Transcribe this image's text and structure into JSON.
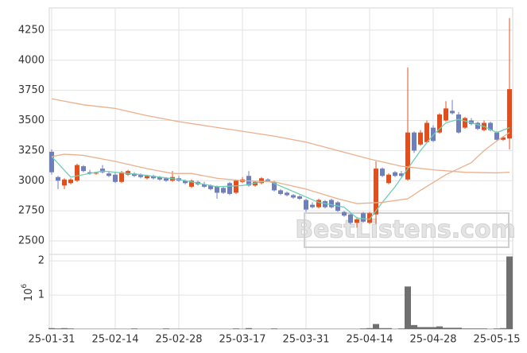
{
  "chart_data": [
    {
      "type": "candlestick",
      "categories": [
        "25-01-31",
        null,
        null,
        null,
        null,
        null,
        null,
        null,
        null,
        null,
        "25-02-14",
        null,
        null,
        null,
        null,
        null,
        null,
        null,
        null,
        null,
        "25-02-28",
        null,
        null,
        null,
        null,
        null,
        null,
        null,
        null,
        null,
        "25-03-17",
        null,
        null,
        null,
        null,
        null,
        null,
        null,
        null,
        null,
        "25-03-31",
        null,
        null,
        null,
        null,
        null,
        null,
        null,
        null,
        null,
        "25-04-14",
        null,
        null,
        null,
        null,
        null,
        null,
        null,
        null,
        null,
        "25-04-28",
        null,
        null,
        null,
        null,
        null,
        null,
        null,
        null,
        null,
        "25-05-15",
        null,
        null
      ],
      "open": [
        3240,
        3030,
        2960,
        2980,
        3000,
        3120,
        3070,
        3060,
        3100,
        3060,
        3050,
        2990,
        3050,
        3060,
        3050,
        3020,
        3040,
        3030,
        3020,
        3000,
        3020,
        3000,
        2950,
        2990,
        2970,
        2960,
        2950,
        2940,
        2980,
        2900,
        2990,
        3040,
        2960,
        2980,
        3010,
        2990,
        2920,
        2900,
        2880,
        2870,
        2840,
        2800,
        2780,
        2830,
        2840,
        2820,
        2740,
        2720,
        2650,
        2730,
        2650,
        2720,
        3100,
        2980,
        3070,
        3060,
        3010,
        3400,
        3300,
        3320,
        3440,
        3400,
        3500,
        3580,
        3550,
        3440,
        3500,
        3480,
        3420,
        3480,
        3400,
        3340,
        3350
      ],
      "high": [
        3260,
        3040,
        3020,
        3020,
        3140,
        3130,
        3090,
        3070,
        3130,
        3080,
        3070,
        3080,
        3090,
        3070,
        3060,
        3050,
        3050,
        3040,
        3030,
        3080,
        3040,
        3010,
        3010,
        3000,
        2990,
        2970,
        2960,
        2950,
        2990,
        3010,
        3030,
        3080,
        3000,
        3030,
        3020,
        3000,
        2930,
        2910,
        2890,
        2880,
        2850,
        2820,
        2850,
        2840,
        2850,
        2830,
        2750,
        2730,
        2700,
        2740,
        2740,
        3160,
        3110,
        3060,
        3080,
        3080,
        3940,
        3410,
        3420,
        3500,
        3460,
        3560,
        3660,
        3670,
        3570,
        3530,
        3520,
        3490,
        3500,
        3490,
        3410,
        3370,
        4350
      ],
      "low": [
        3050,
        2930,
        2930,
        2970,
        2990,
        3070,
        3050,
        3050,
        3060,
        3030,
        2980,
        2980,
        3040,
        3030,
        3020,
        3010,
        3010,
        3000,
        2990,
        2990,
        2990,
        2970,
        2940,
        2960,
        2940,
        2920,
        2850,
        2890,
        2880,
        2890,
        2980,
        2950,
        2950,
        2970,
        2990,
        2910,
        2880,
        2870,
        2850,
        2840,
        2740,
        2770,
        2770,
        2770,
        2770,
        2740,
        2700,
        2640,
        2610,
        2650,
        2640,
        2640,
        3030,
        2970,
        3030,
        3030,
        3000,
        3230,
        3290,
        3310,
        3320,
        3390,
        3490,
        3550,
        3390,
        3430,
        3460,
        3420,
        3410,
        3410,
        3330,
        3330,
        3260
      ],
      "close": [
        3070,
        3000,
        3010,
        3010,
        3130,
        3080,
        3060,
        3065,
        3070,
        3040,
        2990,
        3070,
        3080,
        3040,
        3030,
        3040,
        3020,
        3010,
        3000,
        3030,
        3000,
        2980,
        3000,
        2970,
        2950,
        2930,
        2900,
        2900,
        2890,
        3000,
        3010,
        2960,
        2990,
        3020,
        3000,
        2920,
        2890,
        2880,
        2860,
        2850,
        2760,
        2780,
        2840,
        2780,
        2780,
        2750,
        2710,
        2650,
        2680,
        2660,
        2730,
        3100,
        3040,
        3050,
        3040,
        3040,
        3400,
        3250,
        3400,
        3480,
        3330,
        3550,
        3600,
        3560,
        3400,
        3520,
        3470,
        3430,
        3480,
        3420,
        3340,
        3360,
        3760
      ],
      "up_color": "#e0501e",
      "down_color": "#6f7fba",
      "series": [
        {
          "color": "#6fcfb2",
          "x": [
            0,
            3,
            8,
            14,
            20,
            26,
            30,
            34,
            38,
            42,
            46,
            48,
            50,
            52,
            54,
            56,
            58,
            60,
            62,
            64,
            66,
            68,
            70,
            72
          ],
          "values": [
            3200,
            3030,
            3080,
            3050,
            3010,
            2950,
            2960,
            3000,
            2910,
            2820,
            2780,
            2690,
            2680,
            2820,
            2950,
            3100,
            3250,
            3380,
            3480,
            3510,
            3480,
            3450,
            3400,
            3440
          ]
        },
        {
          "color": "#eab08c",
          "x": [
            0,
            2,
            5,
            10,
            15,
            19,
            22,
            26,
            30,
            35,
            40,
            45,
            48,
            52,
            56,
            58,
            62,
            66,
            68,
            70,
            72
          ],
          "values": [
            3200,
            3220,
            3210,
            3160,
            3100,
            3060,
            3060,
            3020,
            3000,
            2990,
            2930,
            2850,
            2810,
            2820,
            2850,
            2920,
            3050,
            3150,
            3250,
            3330,
            3400
          ]
        },
        {
          "color": "#eab08c",
          "x": [
            0,
            5,
            10,
            15,
            20,
            25,
            30,
            35,
            40,
            45,
            50,
            55,
            60,
            65,
            70,
            72
          ],
          "values": [
            3680,
            3630,
            3600,
            3540,
            3490,
            3450,
            3410,
            3370,
            3320,
            3250,
            3180,
            3120,
            3090,
            3070,
            3065,
            3070
          ]
        }
      ],
      "ylim": [
        2388,
        4434
      ],
      "yticks": [
        2500,
        2750,
        3000,
        3250,
        3500,
        3750,
        4000,
        4250
      ],
      "grid": true,
      "watermark": "BestListens.com"
    },
    {
      "type": "bar",
      "color": "#707070",
      "categories": [
        "25-01-31",
        null,
        null,
        null,
        null,
        null,
        null,
        null,
        null,
        null,
        "25-02-14",
        null,
        null,
        null,
        null,
        null,
        null,
        null,
        null,
        null,
        "25-02-28",
        null,
        null,
        null,
        null,
        null,
        null,
        null,
        null,
        null,
        "25-03-17",
        null,
        null,
        null,
        null,
        null,
        null,
        null,
        null,
        null,
        "25-03-31",
        null,
        null,
        null,
        null,
        null,
        null,
        null,
        null,
        null,
        "25-04-14",
        null,
        null,
        null,
        null,
        null,
        null,
        null,
        null,
        null,
        "25-04-28",
        null,
        null,
        null,
        null,
        null,
        null,
        null,
        null,
        null,
        "25-05-15",
        null,
        null
      ],
      "values": [
        0.03,
        0.02,
        0.03,
        0.02,
        0.01,
        0.01,
        0.01,
        0.01,
        0.01,
        0.01,
        0.01,
        0.01,
        0.01,
        0.02,
        0.01,
        0.01,
        0.01,
        0.01,
        0.02,
        0.01,
        0.01,
        0.01,
        0.01,
        0.01,
        0.01,
        0.01,
        0.01,
        0.01,
        0.01,
        0.02,
        0.01,
        0.03,
        0.01,
        0.01,
        0.01,
        0.02,
        0.01,
        0.01,
        0.01,
        0.01,
        0.01,
        0.01,
        0.01,
        0.01,
        0.01,
        0.01,
        0.01,
        0.01,
        0.01,
        0.02,
        0.03,
        0.15,
        0.03,
        0.03,
        0.01,
        0.02,
        1.25,
        0.12,
        0.06,
        0.06,
        0.06,
        0.08,
        0.04,
        0.04,
        0.04,
        0.02,
        0.02,
        0.02,
        0.02,
        0.01,
        0.02,
        0.03,
        2.13
      ],
      "y_label": "10",
      "y_label_exponent": "6",
      "ylim": [
        0,
        2.19
      ],
      "yticks": [
        1,
        2
      ],
      "grid": true
    }
  ]
}
